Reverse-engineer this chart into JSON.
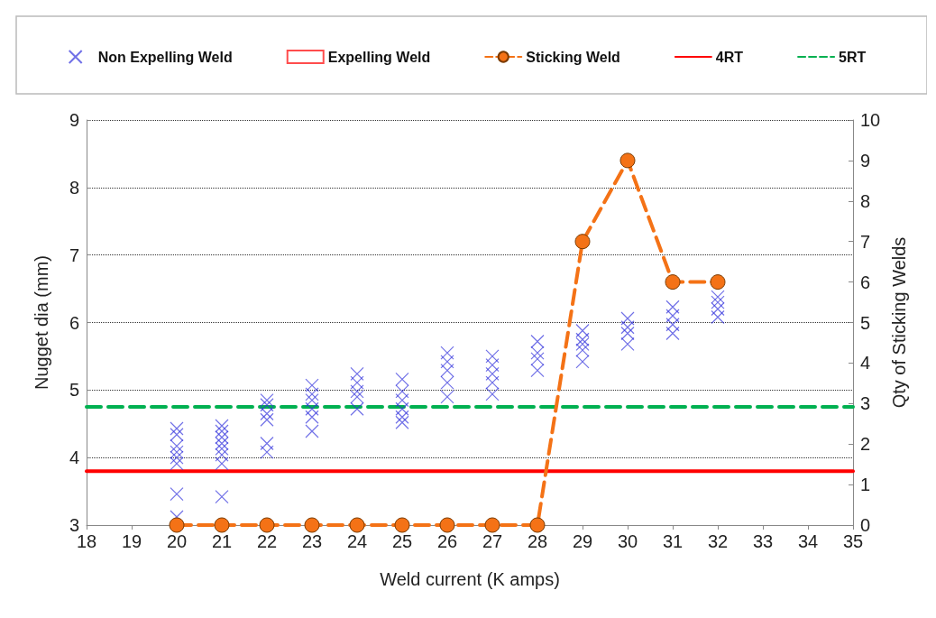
{
  "chart_data": {
    "type": "scatter",
    "xlabel": "Weld current (K amps)",
    "ylabel": "Nugget dia (mm)",
    "y2label": "Qty of Sticking Welds",
    "xlim": [
      18,
      35
    ],
    "xticks": [
      18,
      19,
      20,
      21,
      22,
      23,
      24,
      25,
      26,
      27,
      28,
      29,
      30,
      31,
      32,
      33,
      34,
      35
    ],
    "ylim": [
      3,
      9
    ],
    "yticks": [
      3,
      4,
      5,
      6,
      7,
      8,
      9
    ],
    "y2lim": [
      0,
      10
    ],
    "y2ticks": [
      0,
      1,
      2,
      3,
      4,
      5,
      6,
      7,
      8,
      9,
      10
    ],
    "grid": "y",
    "legend": "top",
    "series": [
      {
        "name": "Non Expelling Weld",
        "marker": "cross",
        "color": "#3333dd",
        "x": [
          20,
          20,
          20,
          20,
          20,
          20,
          20,
          20,
          21,
          21,
          21,
          21,
          21,
          21,
          21,
          21,
          22,
          22,
          22,
          22,
          22,
          22,
          23,
          23,
          23,
          23,
          23,
          23,
          24,
          24,
          24,
          24,
          24,
          25,
          25,
          25,
          25,
          25,
          25,
          26,
          26,
          26,
          26,
          26,
          27,
          27,
          27,
          27,
          27,
          28,
          28,
          28,
          28,
          29,
          29,
          29,
          29,
          29,
          30,
          30,
          30,
          30,
          31,
          31,
          31,
          31,
          32,
          32,
          32,
          32
        ],
        "values": [
          4.43,
          4.34,
          4.17,
          4.08,
          4.0,
          3.91,
          3.46,
          3.12,
          4.47,
          4.39,
          4.3,
          4.21,
          4.13,
          4.04,
          3.91,
          3.42,
          4.85,
          4.78,
          4.65,
          4.56,
          4.21,
          4.08,
          5.07,
          4.94,
          4.85,
          4.72,
          4.6,
          4.39,
          5.24,
          5.11,
          4.98,
          4.9,
          4.72,
          5.16,
          4.98,
          4.85,
          4.72,
          4.6,
          4.52,
          5.55,
          5.42,
          5.29,
          5.11,
          4.9,
          5.5,
          5.37,
          5.24,
          5.11,
          4.94,
          5.72,
          5.55,
          5.46,
          5.29,
          5.88,
          5.75,
          5.68,
          5.59,
          5.42,
          6.06,
          5.93,
          5.84,
          5.68,
          6.23,
          6.1,
          5.97,
          5.84,
          6.38,
          6.3,
          6.2,
          6.08
        ]
      },
      {
        "name": "Expelling Weld",
        "marker": "square",
        "color": "#ff0000"
      },
      {
        "name": "Sticking Weld",
        "type": "line",
        "axis": "y2",
        "marker": "circle",
        "line_style": "dashed",
        "color": "#f47216",
        "x": [
          20,
          21,
          22,
          23,
          24,
          25,
          26,
          27,
          28,
          29,
          30,
          31,
          32
        ],
        "values": [
          0,
          0,
          0,
          0,
          0,
          0,
          0,
          0,
          0,
          7,
          9,
          6,
          6
        ]
      },
      {
        "name": "4RT",
        "type": "line",
        "marker": "none",
        "line_style": "solid",
        "color": "#ff0000",
        "x": [
          18,
          35
        ],
        "values": [
          3.8,
          3.8
        ]
      },
      {
        "name": "5RT",
        "type": "line",
        "marker": "none",
        "line_style": "dashed",
        "color": "#00b050",
        "x": [
          18,
          35
        ],
        "values": [
          4.75,
          4.75
        ]
      }
    ]
  }
}
